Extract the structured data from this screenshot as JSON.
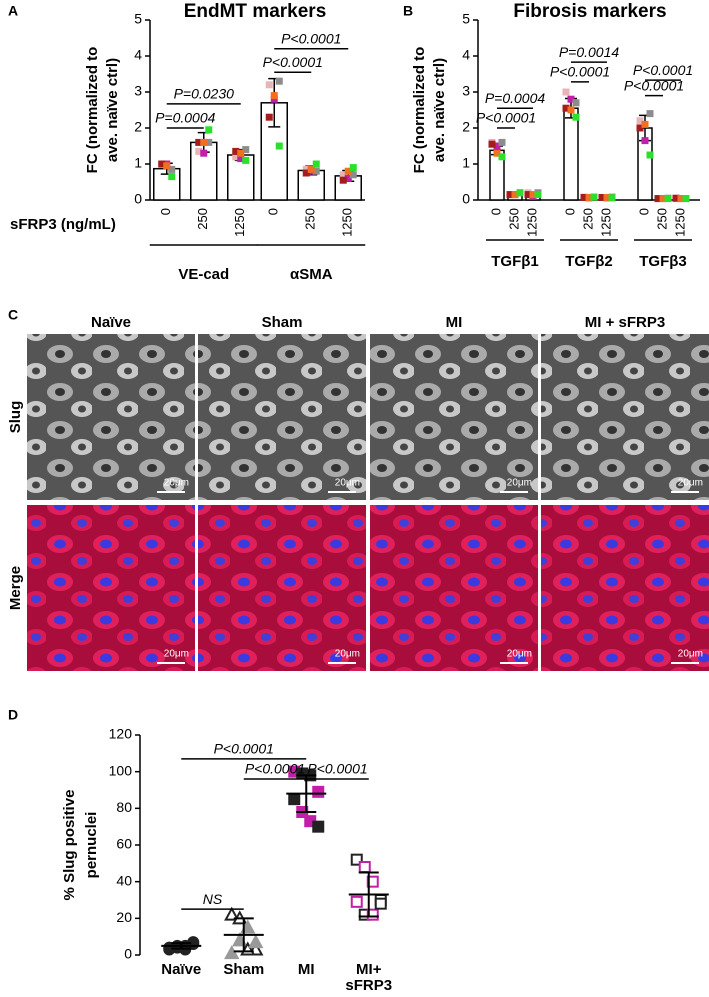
{
  "panel_labels": [
    "A",
    "B",
    "C",
    "D"
  ],
  "image_panel": {
    "columns": [
      "Naïve",
      "Sham",
      "MI",
      "MI + sFRP3"
    ],
    "rows": [
      "Slug",
      "Merge"
    ],
    "scale_bar": "20μm"
  },
  "chart_data": [
    {
      "type": "bar",
      "title": "EndMT markers",
      "ylabel": [
        "FC (normalized to",
        "ave. naïve ctrl)"
      ],
      "xlabel": "sFRP3 (ng/mL)",
      "groups": [
        "VE-cad",
        "αSMA"
      ],
      "categories": [
        "0",
        "250",
        "1250",
        "0",
        "250",
        "1250"
      ],
      "values": [
        0.87,
        1.6,
        1.25,
        2.7,
        0.82,
        0.67
      ],
      "errors": [
        0.15,
        0.27,
        0.15,
        0.67,
        0.12,
        0.15
      ],
      "points": [
        [
          1.0,
          1.0,
          0.85,
          1.0,
          0.95,
          0.65
        ],
        [
          1.35,
          1.3,
          1.6,
          1.6,
          1.6,
          1.95
        ],
        [
          1.2,
          1.15,
          1.4,
          1.35,
          1.3,
          1.1
        ],
        [
          3.2,
          2.8,
          3.3,
          2.3,
          2.9,
          1.5
        ],
        [
          0.85,
          0.8,
          0.8,
          0.75,
          0.85,
          1.0
        ],
        [
          0.7,
          0.6,
          0.7,
          0.55,
          0.8,
          0.9
        ]
      ],
      "point_colors": [
        "#e8b4b8",
        "#c21fa8",
        "#8c8c8c",
        "#a51c1c",
        "#f07020",
        "#2be02b"
      ],
      "color": "#ffffff",
      "ylim": [
        0,
        5
      ],
      "yticks": [
        0,
        1,
        2,
        3,
        4,
        5
      ],
      "annotations": [
        {
          "text": "P=0.0004",
          "from": 0,
          "to": 1,
          "y": 2.0
        },
        {
          "text": "P=0.0230",
          "from": 0,
          "to": 2,
          "y": 2.67
        },
        {
          "text": "P<0.0001",
          "from": 3,
          "to": 4,
          "y": 3.55
        },
        {
          "text": "P<0.0001",
          "from": 3,
          "to": 5,
          "y": 4.2
        }
      ]
    },
    {
      "type": "bar",
      "title": "Fibrosis markers",
      "ylabel": [
        "FC (normalized to",
        "ave. naïve ctrl)"
      ],
      "groups": [
        "TGFβ1",
        "TGFβ2",
        "TGFβ3"
      ],
      "categories": [
        "0",
        "250",
        "1250",
        "0",
        "250",
        "1250",
        "0",
        "250",
        "1250"
      ],
      "values": [
        1.38,
        0.18,
        0.18,
        2.55,
        0.07,
        0.07,
        2.0,
        0.04,
        0.04
      ],
      "errors": [
        0.12,
        0.03,
        0.03,
        0.27,
        0.02,
        0.02,
        0.35,
        0.01,
        0.01
      ],
      "points": [
        [
          1.6,
          1.5,
          1.6,
          1.55,
          1.3,
          1.2
        ],
        [
          0.15,
          0.15,
          0.2,
          0.15,
          0.15,
          0.2
        ],
        [
          0.2,
          0.1,
          0.2,
          0.15,
          0.15,
          0.15
        ],
        [
          3.0,
          2.8,
          2.7,
          2.55,
          2.5,
          2.3
        ],
        [
          0.08,
          0.06,
          0.08,
          0.07,
          0.07,
          0.08
        ],
        [
          0.07,
          0.06,
          0.08,
          0.07,
          0.07,
          0.06
        ],
        [
          2.2,
          1.65,
          2.4,
          2.0,
          2.1,
          1.25
        ],
        [
          0.04,
          0.04,
          0.05,
          0.04,
          0.04,
          0.04
        ],
        [
          0.04,
          0.04,
          0.04,
          0.05,
          0.04,
          0.04
        ]
      ],
      "point_colors": [
        "#e8b4b8",
        "#c21fa8",
        "#8c8c8c",
        "#a51c1c",
        "#f07020",
        "#2be02b"
      ],
      "color": "#ffffff",
      "ylim": [
        0,
        5
      ],
      "yticks": [
        0,
        1,
        2,
        3,
        4,
        5
      ],
      "annotations": [
        {
          "text": "P<0.0001",
          "from": 0,
          "to": 1,
          "y": 2.0
        },
        {
          "text": "P=0.0004",
          "from": 0,
          "to": 2,
          "y": 2.55
        },
        {
          "text": "P<0.0001",
          "from": 3,
          "to": 4,
          "y": 3.28
        },
        {
          "text": "P=0.0014",
          "from": 3,
          "to": 5,
          "y": 3.83
        },
        {
          "text": "P<0.0001",
          "from": 6,
          "to": 7,
          "y": 2.9
        },
        {
          "text": "P<0.0001",
          "from": 6,
          "to": 8,
          "y": 3.33
        }
      ]
    },
    {
      "type": "dot",
      "ylabel": [
        "% Slug positive",
        "pernuclei"
      ],
      "categories": [
        "Naïve",
        "Sham",
        "MI",
        "MI+ sFRP3"
      ],
      "groups": [
        {
          "marker": "circle",
          "values": [
            3,
            4,
            5,
            6,
            4,
            5,
            3,
            7
          ],
          "colors": [
            "#222",
            "#222",
            "#222",
            "#222",
            "#222",
            "#222",
            "#222",
            "#222"
          ],
          "open": [
            false,
            false,
            false,
            false,
            false,
            false,
            false,
            false
          ]
        },
        {
          "marker": "triangle",
          "values": [
            22,
            20,
            15,
            3,
            1,
            8,
            3,
            7
          ],
          "colors": [
            "#222",
            "#222",
            "#999",
            "#222",
            "#999",
            "#999",
            "#222",
            "#999"
          ],
          "open": [
            true,
            true,
            false,
            true,
            false,
            false,
            true,
            false
          ]
        },
        {
          "marker": "square",
          "values": [
            100,
            99,
            98,
            89,
            85,
            78,
            73,
            70
          ],
          "colors": [
            "#c21fa8",
            "#222",
            "#222",
            "#c21fa8",
            "#222",
            "#c21fa8",
            "#c21fa8",
            "#222"
          ],
          "open": [
            false,
            false,
            false,
            false,
            false,
            false,
            false,
            false
          ]
        },
        {
          "marker": "square",
          "values": [
            52,
            48,
            40,
            30,
            29,
            22,
            22,
            28
          ],
          "colors": [
            "#222",
            "#c21fa8",
            "#c21fa8",
            "#222",
            "#c21fa8",
            "#222",
            "#c21fa8",
            "#222"
          ],
          "open": [
            true,
            true,
            true,
            true,
            true,
            true,
            true,
            true
          ]
        }
      ],
      "means": [
        5,
        11,
        88,
        33
      ],
      "errors": [
        1.5,
        9,
        10,
        12
      ],
      "ylim": [
        0,
        120
      ],
      "yticks": [
        0,
        20,
        40,
        60,
        80,
        100,
        120
      ],
      "annotations": [
        {
          "text": "P<0.0001",
          "from": 0,
          "to": 2,
          "y": 107
        },
        {
          "text": "P<0.0001",
          "from": 1,
          "to": 2,
          "y": 96
        },
        {
          "text": "P<0.0001",
          "from": 2,
          "to": 3,
          "y": 96
        },
        {
          "text": "NS",
          "from": 0,
          "to": 1,
          "y": 25
        }
      ]
    }
  ]
}
